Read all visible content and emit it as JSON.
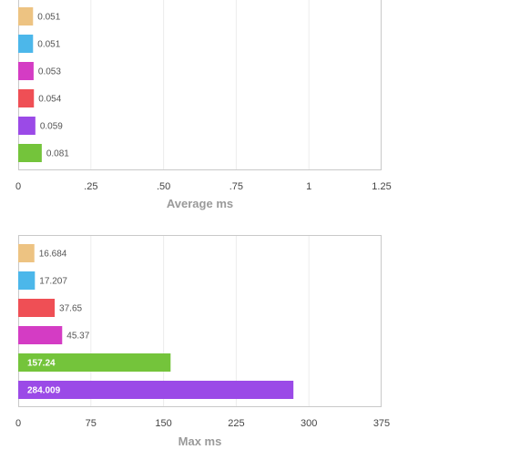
{
  "chart_data": [
    {
      "type": "bar",
      "orientation": "horizontal",
      "xlabel": "Average ms",
      "xlim": [
        0,
        1.25
      ],
      "ticks": [
        "0",
        ".25",
        ".50",
        ".75",
        "1",
        "1.25"
      ],
      "grid": true,
      "bars": [
        {
          "label": "0.051",
          "value": 0.051,
          "color": "#edc382"
        },
        {
          "label": "0.051",
          "value": 0.051,
          "color": "#4cb7ea"
        },
        {
          "label": "0.053",
          "value": 0.053,
          "color": "#d43cc4"
        },
        {
          "label": "0.054",
          "value": 0.054,
          "color": "#ef4f55"
        },
        {
          "label": "0.059",
          "value": 0.059,
          "color": "#9b4ae7"
        },
        {
          "label": "0.081",
          "value": 0.081,
          "color": "#74c43b"
        }
      ]
    },
    {
      "type": "bar",
      "orientation": "horizontal",
      "xlabel": "Max ms",
      "xlim": [
        0,
        375
      ],
      "ticks": [
        "0",
        "75",
        "150",
        "225",
        "300",
        "375"
      ],
      "grid": true,
      "bars": [
        {
          "label": "16.684",
          "value": 16.684,
          "color": "#edc382"
        },
        {
          "label": "17.207",
          "value": 17.207,
          "color": "#4cb7ea"
        },
        {
          "label": "37.65",
          "value": 37.65,
          "color": "#ef4f55"
        },
        {
          "label": "45.37",
          "value": 45.37,
          "color": "#d43cc4"
        },
        {
          "label": "157.24",
          "value": 157.24,
          "color": "#74c43b",
          "label_inside": true
        },
        {
          "label": "284.009",
          "value": 284.009,
          "color": "#9b4ae7",
          "label_inside": true
        }
      ]
    }
  ]
}
